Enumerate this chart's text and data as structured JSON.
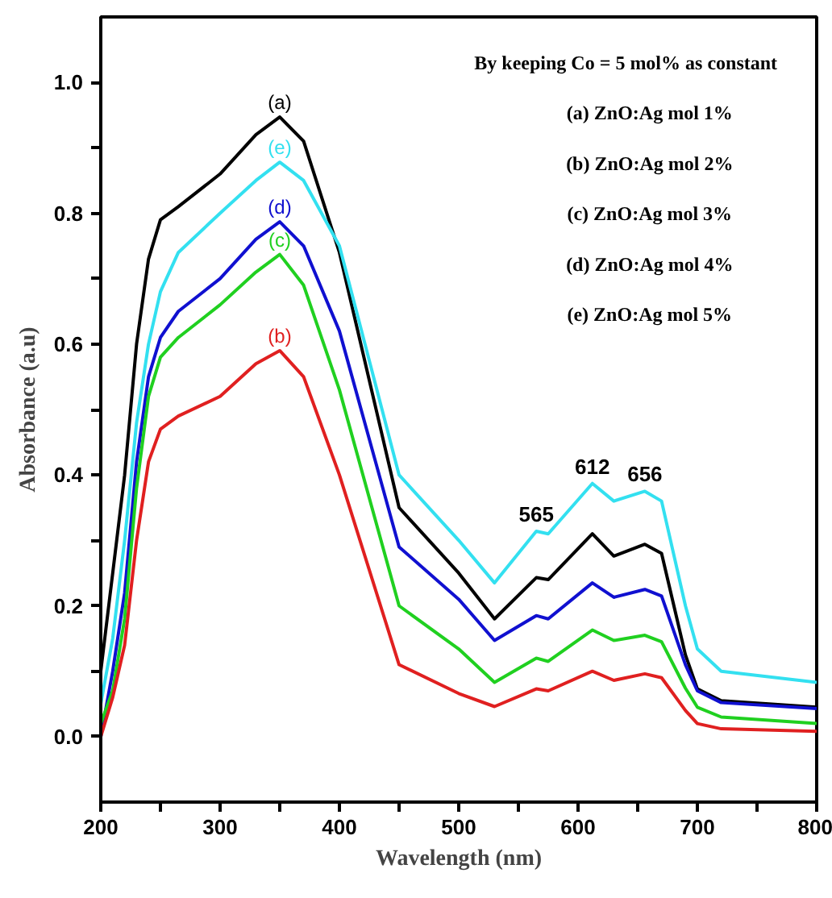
{
  "chart_data": {
    "type": "line",
    "xlabel": "Wavelength (nm)",
    "ylabel": "Absorbance (a.u)",
    "x": [
      200,
      210,
      220,
      230,
      240,
      250,
      265,
      300,
      330,
      350,
      370,
      400,
      450,
      500,
      530,
      565,
      575,
      612,
      630,
      656,
      670,
      690,
      700,
      720,
      800
    ],
    "series": [
      {
        "name": "(a)",
        "color": "#000000",
        "values": [
          0.1,
          0.25,
          0.4,
          0.6,
          0.73,
          0.79,
          0.81,
          0.86,
          0.92,
          0.947,
          0.91,
          0.74,
          0.35,
          0.25,
          0.18,
          0.243,
          0.24,
          0.31,
          0.276,
          0.294,
          0.28,
          0.125,
          0.073,
          0.055,
          0.045
        ]
      },
      {
        "name": "(e)",
        "color": "#33e0f0",
        "values": [
          0.05,
          0.15,
          0.3,
          0.48,
          0.6,
          0.68,
          0.74,
          0.8,
          0.85,
          0.878,
          0.85,
          0.75,
          0.4,
          0.3,
          0.235,
          0.314,
          0.31,
          0.387,
          0.36,
          0.375,
          0.36,
          0.2,
          0.134,
          0.1,
          0.083
        ]
      },
      {
        "name": "(d)",
        "color": "#1010d0",
        "values": [
          0.0,
          0.1,
          0.22,
          0.42,
          0.55,
          0.61,
          0.65,
          0.7,
          0.76,
          0.787,
          0.75,
          0.62,
          0.29,
          0.21,
          0.147,
          0.185,
          0.18,
          0.235,
          0.213,
          0.225,
          0.215,
          0.11,
          0.07,
          0.052,
          0.043
        ]
      },
      {
        "name": "(c)",
        "color": "#20d020",
        "values": [
          0.02,
          0.07,
          0.18,
          0.38,
          0.52,
          0.58,
          0.61,
          0.66,
          0.71,
          0.737,
          0.69,
          0.53,
          0.2,
          0.134,
          0.083,
          0.12,
          0.115,
          0.163,
          0.147,
          0.155,
          0.145,
          0.074,
          0.045,
          0.03,
          0.02
        ]
      },
      {
        "name": "(b)",
        "color": "#e02020",
        "values": [
          0.0,
          0.06,
          0.14,
          0.3,
          0.42,
          0.47,
          0.49,
          0.52,
          0.57,
          0.59,
          0.55,
          0.4,
          0.11,
          0.066,
          0.046,
          0.073,
          0.07,
          0.1,
          0.086,
          0.096,
          0.09,
          0.04,
          0.02,
          0.012,
          0.008
        ]
      }
    ],
    "xlim": [
      200,
      800
    ],
    "ylim": [
      -0.1,
      1.1
    ],
    "xticks": [
      200,
      {
        "value": 250,
        "label": null
      },
      300,
      {
        "value": 350,
        "label": null
      },
      400,
      {
        "value": 450,
        "label": null
      },
      500,
      {
        "value": 550,
        "label": null
      },
      600,
      {
        "value": 650,
        "label": null
      },
      700,
      {
        "value": 750,
        "label": null
      },
      800
    ],
    "yticks": [
      {
        "value": 0,
        "label": "0.0"
      },
      {
        "value": 0.1,
        "label": null
      },
      {
        "value": 0.2,
        "label": "0.2"
      },
      {
        "value": 0.3,
        "label": null
      },
      {
        "value": 0.4,
        "label": "0.4"
      },
      {
        "value": 0.5,
        "label": null
      },
      {
        "value": 0.6,
        "label": "0.6"
      },
      {
        "value": 0.7,
        "label": null
      },
      {
        "value": 0.8,
        "label": "0.8"
      },
      {
        "value": 0.9,
        "label": null
      },
      {
        "value": 1.0,
        "label": "1.0"
      }
    ],
    "grid": false,
    "legend": false,
    "marker": "none",
    "line_style": "solid",
    "annotations": [
      "By keeping Co = 5 mol% as constant",
      "(a) ZnO:Ag mol 1%",
      "(b) ZnO:Ag mol 2%",
      "(c) ZnO:Ag mol 3%",
      "(d) ZnO:Ag mol 4%",
      "(e) ZnO:Ag mol 5%",
      {
        "text": "565",
        "x": 565,
        "y": 0.314
      },
      {
        "text": "612",
        "x": 612,
        "y": 0.387
      },
      {
        "text": "656",
        "x": 656,
        "y": 0.375
      }
    ]
  }
}
